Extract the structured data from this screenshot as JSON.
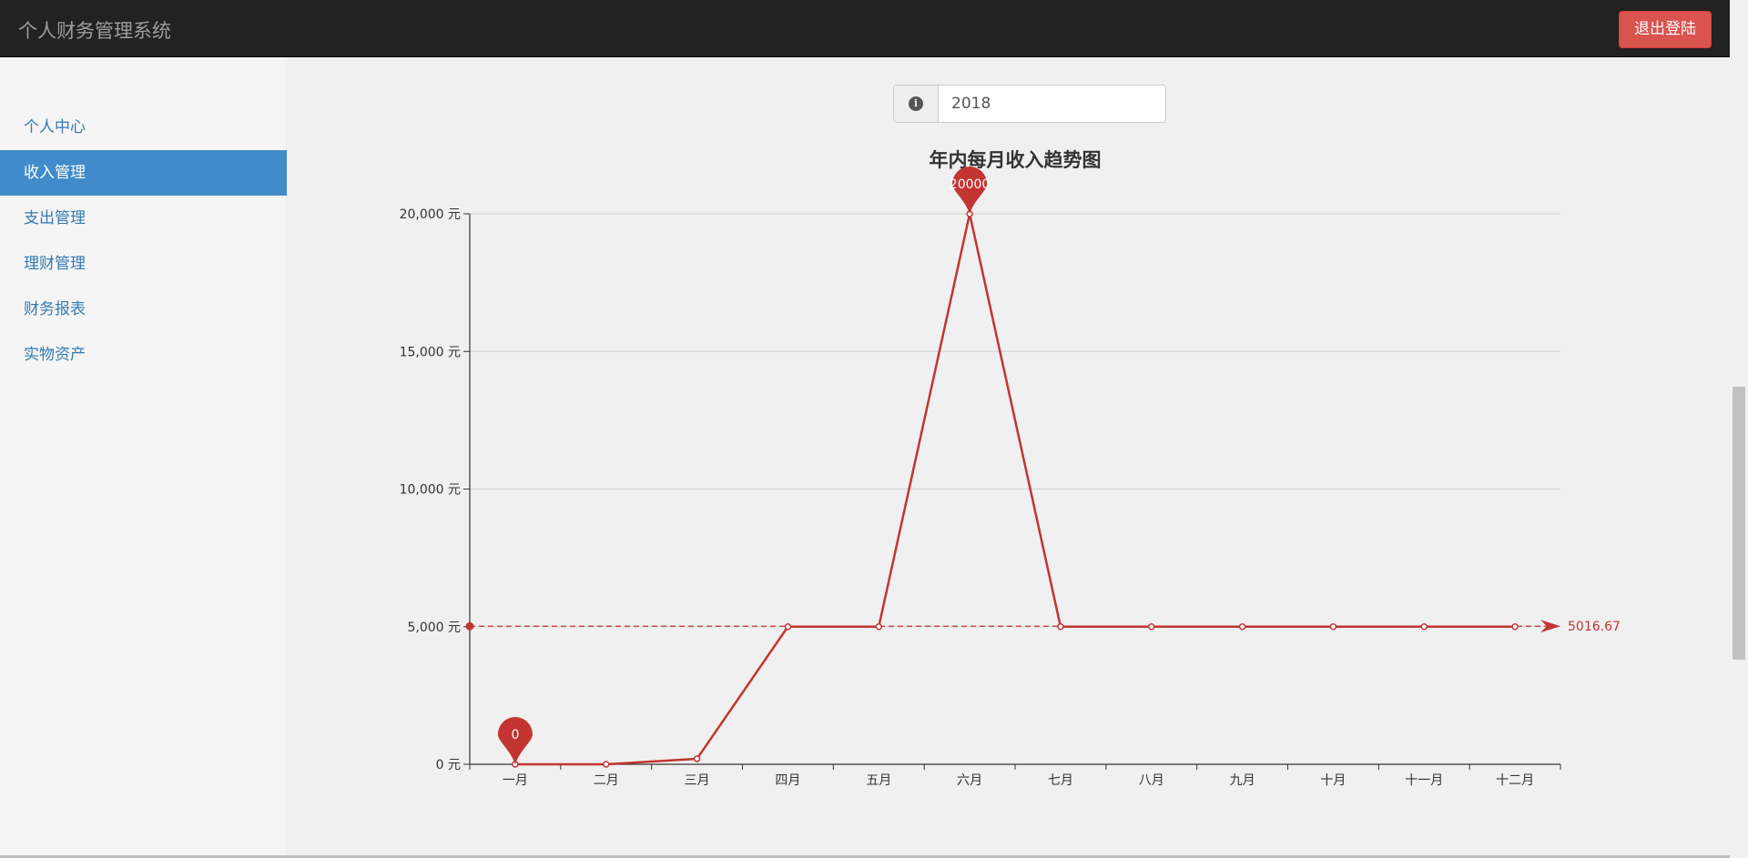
{
  "app": {
    "title": "个人财务管理系统",
    "logout_label": "退出登陆"
  },
  "sidebar": {
    "items": [
      {
        "label": "个人中心",
        "active": false
      },
      {
        "label": "收入管理",
        "active": true
      },
      {
        "label": "支出管理",
        "active": false
      },
      {
        "label": "理财管理",
        "active": false
      },
      {
        "label": "财务报表",
        "active": false
      },
      {
        "label": "实物资产",
        "active": false
      }
    ]
  },
  "year_filter": {
    "icon": "info-icon",
    "value": "2018"
  },
  "colors": {
    "series": "#c23531",
    "active_nav": "#428bca",
    "logout": "#d9534f"
  },
  "chart_data": {
    "type": "line",
    "title": "年内每月收入趋势图",
    "categories": [
      "一月",
      "二月",
      "三月",
      "四月",
      "五月",
      "六月",
      "七月",
      "八月",
      "九月",
      "十月",
      "十一月",
      "十二月"
    ],
    "values": [
      0,
      0,
      200,
      5000,
      5000,
      20000,
      5000,
      5000,
      5000,
      5000,
      5000,
      5000
    ],
    "ylim": [
      0,
      20000
    ],
    "yticks": [
      0,
      5000,
      10000,
      15000,
      20000
    ],
    "ytick_labels": [
      "0 元",
      "5,000 元",
      "10,000 元",
      "15,000 元",
      "20,000 元"
    ],
    "grid": true,
    "mark_points": [
      {
        "label": "20000",
        "category": "六月",
        "value": 20000
      },
      {
        "label": "0",
        "category": "一月",
        "value": 0
      }
    ],
    "mark_line": {
      "label": "5016.67",
      "value": 5016.67
    }
  }
}
